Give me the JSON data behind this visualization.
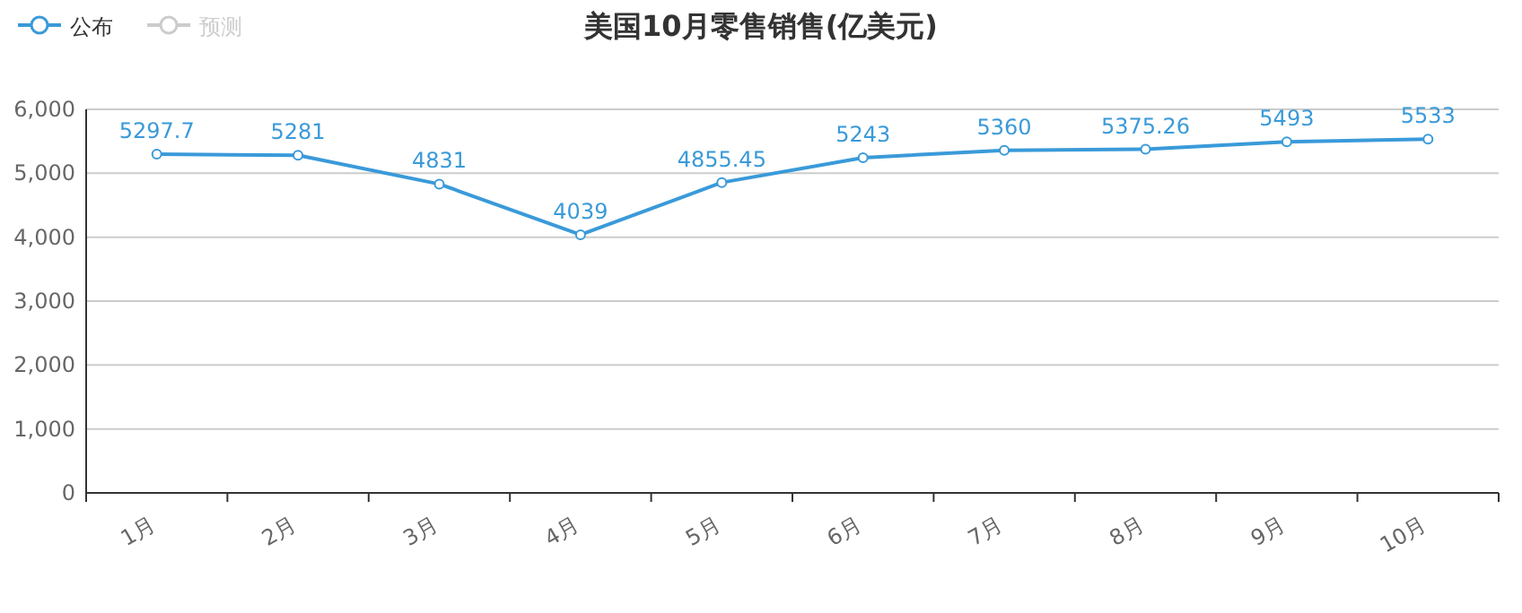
{
  "chart_data": {
    "type": "line",
    "title": "美国10月零售销售(亿美元)",
    "categories": [
      "1月",
      "2月",
      "3月",
      "4月",
      "5月",
      "6月",
      "7月",
      "8月",
      "9月",
      "10月"
    ],
    "series": [
      {
        "name": "公布",
        "color": "#3a9ad9",
        "values": [
          5297.7,
          5281,
          4831,
          4039,
          4855.45,
          5243,
          5360,
          5375.26,
          5493,
          5533
        ]
      },
      {
        "name": "预测",
        "color": "#cccccc",
        "values": [
          null,
          null,
          null,
          null,
          null,
          null,
          null,
          null,
          null,
          null
        ]
      }
    ],
    "ylim": [
      0,
      6000
    ],
    "yticks": [
      {
        "value": 0,
        "label": "0"
      },
      {
        "value": 1000,
        "label": "1,000"
      },
      {
        "value": 2000,
        "label": "2,000"
      },
      {
        "value": 3000,
        "label": "3,000"
      },
      {
        "value": 4000,
        "label": "4,000"
      },
      {
        "value": 5000,
        "label": "5,000"
      },
      {
        "value": 6000,
        "label": "6,000"
      }
    ],
    "grid": "y",
    "legend": "top left",
    "marker": "circle",
    "line_style": "solid",
    "data_labels": true
  }
}
